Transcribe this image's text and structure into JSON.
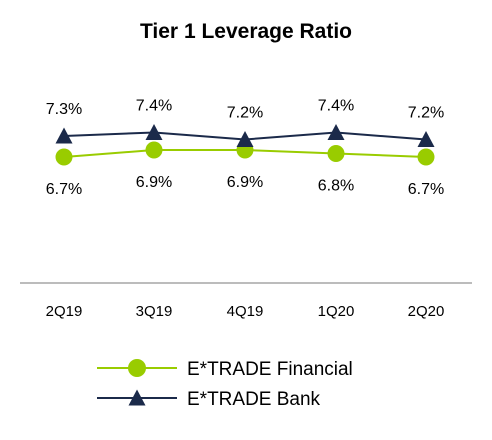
{
  "chart_data": {
    "type": "line",
    "title": "Tier 1 Leverage Ratio",
    "xlabel": "",
    "ylabel": "",
    "categories": [
      "2Q19",
      "3Q19",
      "4Q19",
      "1Q20",
      "2Q20"
    ],
    "ylim": [
      0,
      9
    ],
    "grid": false,
    "legend_position": "bottom",
    "series": [
      {
        "name": "E*TRADE Financial",
        "values": [
          6.7,
          6.9,
          6.9,
          6.8,
          6.7
        ],
        "labels": [
          "6.7%",
          "6.9%",
          "6.9%",
          "6.8%",
          "6.7%"
        ],
        "marker": "circle",
        "color": "#99cc00"
      },
      {
        "name": "E*TRADE Bank",
        "values": [
          7.3,
          7.4,
          7.2,
          7.4,
          7.2
        ],
        "labels": [
          "7.3%",
          "7.4%",
          "7.2%",
          "7.4%",
          "7.2%"
        ],
        "marker": "triangle",
        "color": "#1b2a4a"
      }
    ]
  }
}
